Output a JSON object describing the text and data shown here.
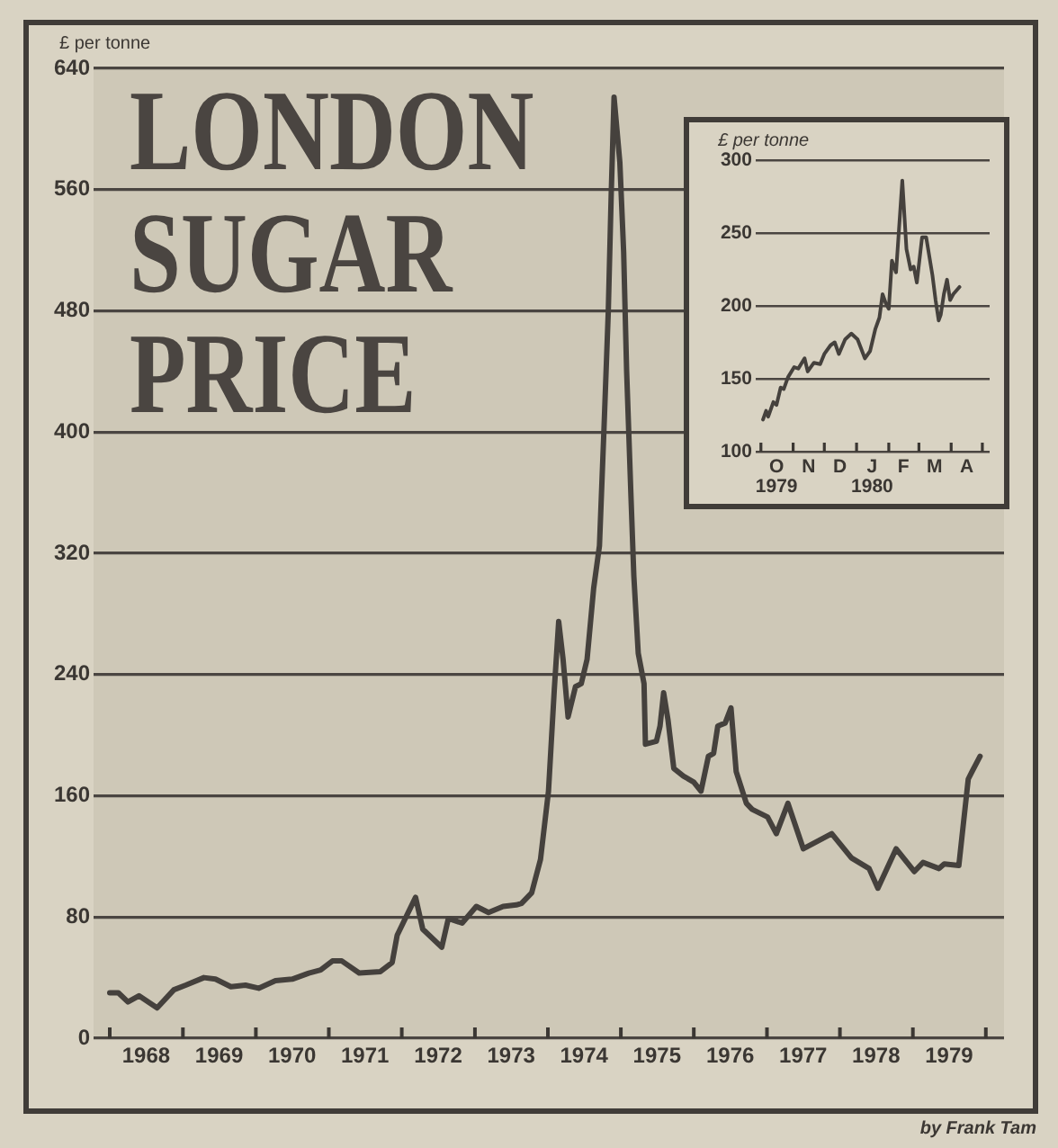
{
  "chart_data": [
    {
      "type": "line",
      "title": "LONDON SUGAR PRICE",
      "ylabel": "£ per tonne",
      "color": "#45413d",
      "marker": "none",
      "line_style": "solid",
      "grid": "y",
      "x": [
        "1968-01-01",
        "1968-02-13",
        "1968-04-01",
        "1968-05-26",
        "1968-08-25",
        "1968-11-17",
        "1969-01-15",
        "1969-04-16",
        "1969-06-13",
        "1969-08-29",
        "1969-11-10",
        "1970-01-15",
        "1970-04-09",
        "1970-07-02",
        "1970-09-23",
        "1970-11-21",
        "1971-01-19",
        "1971-03-07",
        "1971-06-02",
        "1971-09-16",
        "1971-11-14",
        "1971-12-09",
        "1972-03-10",
        "1972-04-15",
        "1972-07-19",
        "1972-08-21",
        "1972-10-29",
        "1973-01-08",
        "1973-03-10",
        "1973-05-22",
        "1973-07-27",
        "1973-08-22",
        "1973-10-12",
        "1973-11-25",
        "1974-01-04",
        "1974-02-02",
        "1974-02-24",
        "1974-03-18",
        "1974-04-12",
        "1974-05-19",
        "1974-06-17",
        "1974-07-16",
        "1974-08-18",
        "1974-09-16",
        "1974-10-08",
        "1974-10-30",
        "1974-11-14",
        "1974-11-28",
        "1974-12-27",
        "1975-01-15",
        "1975-01-30",
        "1975-02-20",
        "1975-03-07",
        "1975-03-29",
        "1975-04-27",
        "1975-05-04",
        "1975-06-28",
        "1975-07-16",
        "1975-08-03",
        "1975-08-25",
        "1975-09-23",
        "1975-11-10",
        "1976-01-01",
        "1976-02-06",
        "1976-03-14",
        "1976-04-09",
        "1976-04-30",
        "1976-06-06",
        "1976-07-05",
        "1976-07-31",
        "1976-09-20",
        "1976-10-19",
        "1977-01-04",
        "1977-02-17",
        "1977-04-16",
        "1977-07-02",
        "1977-11-21",
        "1978-02-28",
        "1978-05-27",
        "1978-07-10",
        "1978-10-09",
        "1979-01-08",
        "1979-02-21",
        "1979-05-12",
        "1979-06-07",
        "1979-08-19",
        "1979-10-05",
        "1979-10-24",
        "1979-12-03"
      ],
      "values": [
        30,
        30,
        24,
        28,
        20,
        32,
        35,
        40,
        39,
        34,
        35,
        33,
        38,
        39,
        43,
        45,
        51,
        51,
        43,
        44,
        50,
        68,
        93,
        72,
        60,
        79,
        76,
        87,
        83,
        87,
        88,
        89,
        96,
        118,
        163,
        230,
        275,
        250,
        212,
        232,
        234,
        250,
        297,
        325,
        400,
        479,
        558,
        621,
        578,
        519,
        440,
        360,
        305,
        254,
        234,
        194,
        196,
        206,
        228,
        210,
        178,
        173,
        169,
        163,
        186,
        188,
        206,
        208,
        218,
        176,
        155,
        151,
        146,
        135,
        155,
        125,
        135,
        119,
        112,
        99,
        125,
        110,
        116,
        112,
        115,
        114,
        171,
        176,
        186
      ],
      "xlim": [
        "1967-10-12",
        "1980-04-01"
      ],
      "xticks": [
        {
          "value": "1968-01-01",
          "label": null
        },
        {
          "value": "1968-07-01",
          "label": "1968"
        },
        {
          "value": "1969-01-01",
          "label": null
        },
        {
          "value": "1969-07-01",
          "label": "1969"
        },
        {
          "value": "1970-01-01",
          "label": null
        },
        {
          "value": "1970-07-01",
          "label": "1970"
        },
        {
          "value": "1971-01-01",
          "label": null
        },
        {
          "value": "1971-07-01",
          "label": "1971"
        },
        {
          "value": "1972-01-01",
          "label": null
        },
        {
          "value": "1972-07-01",
          "label": "1972"
        },
        {
          "value": "1973-01-01",
          "label": null
        },
        {
          "value": "1973-07-01",
          "label": "1973"
        },
        {
          "value": "1974-01-01",
          "label": null
        },
        {
          "value": "1974-07-01",
          "label": "1974"
        },
        {
          "value": "1975-01-01",
          "label": null
        },
        {
          "value": "1975-07-01",
          "label": "1975"
        },
        {
          "value": "1976-01-01",
          "label": null
        },
        {
          "value": "1976-07-01",
          "label": "1976"
        },
        {
          "value": "1977-01-01",
          "label": null
        },
        {
          "value": "1977-07-01",
          "label": "1977"
        },
        {
          "value": "1978-01-01",
          "label": null
        },
        {
          "value": "1978-07-01",
          "label": "1978"
        },
        {
          "value": "1979-01-01",
          "label": null
        },
        {
          "value": "1979-07-01",
          "label": "1979"
        },
        {
          "value": "1980-01-01",
          "label": null
        }
      ],
      "ylim": [
        0,
        640
      ],
      "yticks": [
        0,
        80,
        160,
        240,
        320,
        400,
        480,
        560,
        640
      ],
      "annotations": [
        "by Frank Tam"
      ]
    },
    {
      "type": "line",
      "ylabel": "£ per tonne",
      "color": "#45413d",
      "marker": "none",
      "line_style": "solid",
      "grid": "y",
      "x": [
        "1979-10-03",
        "1979-10-06",
        "1979-10-08",
        "1979-10-13",
        "1979-10-16",
        "1979-10-20",
        "1979-10-23",
        "1979-10-27",
        "1979-11-02",
        "1979-11-06",
        "1979-11-12",
        "1979-11-15",
        "1979-11-21",
        "1979-11-27",
        "1979-12-01",
        "1979-12-07",
        "1979-12-11",
        "1979-12-15",
        "1979-12-21",
        "1979-12-27",
        "1980-01-02",
        "1980-01-09",
        "1980-01-14",
        "1980-01-19",
        "1980-01-23",
        "1980-01-26",
        "1980-01-29",
        "1980-02-01",
        "1980-02-04",
        "1980-02-08",
        "1980-02-14",
        "1980-02-18",
        "1980-02-22",
        "1980-02-25",
        "1980-02-28",
        "1980-03-04",
        "1980-03-08",
        "1980-03-14",
        "1980-03-17",
        "1980-03-20",
        "1980-03-22",
        "1980-03-25",
        "1980-03-28",
        "1980-03-31",
        "1980-04-03",
        "1980-04-09"
      ],
      "values": [
        122,
        128,
        124,
        134,
        132,
        144,
        143,
        151,
        158,
        157,
        164,
        155,
        161,
        160,
        167,
        173,
        175,
        167,
        177,
        181,
        177,
        164,
        169,
        184,
        192,
        208,
        202,
        198,
        231,
        223,
        286,
        239,
        225,
        227,
        216,
        247,
        247,
        221,
        204,
        190,
        194,
        208,
        218,
        204,
        208,
        213
      ],
      "xlim": [
        "1979-09-26",
        "1980-05-08"
      ],
      "xticks": [
        {
          "value": "1979-10-01",
          "label": null
        },
        {
          "value": "1979-10-16",
          "label": "O\n1979"
        },
        {
          "value": "1979-11-01",
          "label": null
        },
        {
          "value": "1979-11-16",
          "label": "N"
        },
        {
          "value": "1979-12-01",
          "label": null
        },
        {
          "value": "1979-12-16",
          "label": "D"
        },
        {
          "value": "1980-01-01",
          "label": null
        },
        {
          "value": "1980-01-16",
          "label": "J\n1980"
        },
        {
          "value": "1980-02-01",
          "label": null
        },
        {
          "value": "1980-02-15",
          "label": "F"
        },
        {
          "value": "1980-03-01",
          "label": null
        },
        {
          "value": "1980-03-16",
          "label": "M"
        },
        {
          "value": "1980-04-01",
          "label": null
        },
        {
          "value": "1980-04-16",
          "label": "A"
        },
        {
          "value": "1980-05-01",
          "label": null
        }
      ],
      "ylim": [
        100,
        300
      ],
      "yticks": [
        100,
        150,
        200,
        250,
        300
      ]
    }
  ]
}
